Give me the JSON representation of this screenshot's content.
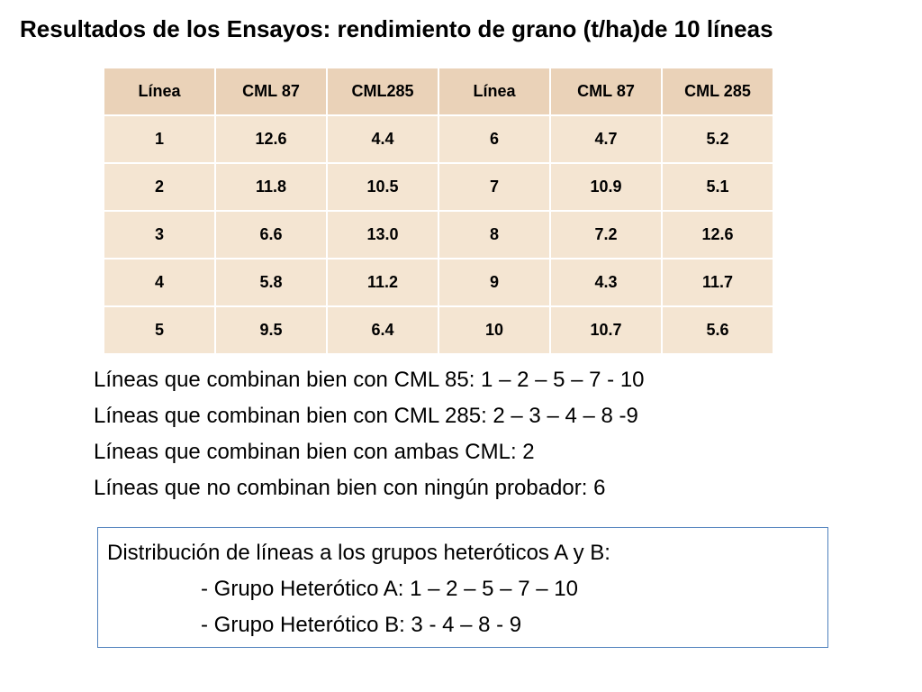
{
  "title": "Resultados de los Ensayos: rendimiento de grano (t/ha)de 10 líneas",
  "table": {
    "headers": [
      "Línea",
      "CML 87",
      "CML285",
      "Línea",
      "CML 87",
      "CML 285"
    ],
    "rows": [
      [
        "1",
        "12.6",
        "4.4",
        "6",
        "4.7",
        "5.2"
      ],
      [
        "2",
        "11.8",
        "10.5",
        "7",
        "10.9",
        "5.1"
      ],
      [
        "3",
        "6.6",
        "13.0",
        "8",
        "7.2",
        "12.6"
      ],
      [
        "4",
        "5.8",
        "11.2",
        "9",
        "4.3",
        "11.7"
      ],
      [
        "5",
        "9.5",
        "6.4",
        "10",
        "10.7",
        "5.6"
      ]
    ]
  },
  "findings": [
    "Líneas que combinan bien con CML 85: 1 – 2 – 5 – 7 -  10",
    "Líneas que combinan bien con CML 285: 2 – 3 – 4 – 8 -9",
    "Líneas que combinan bien con ambas CML: 2",
    "Líneas que no combinan bien con ningún probador: 6"
  ],
  "distribution": {
    "heading": "Distribución de líneas a los grupos heteróticos A y B:",
    "group_a": "- Grupo Heterótico A: 1 – 2 – 5 – 7 – 10",
    "group_b": "- Grupo Heterótico B: 3 - 4 – 8 - 9"
  },
  "colors": {
    "header_fill": "#ead2b8",
    "cell_fill": "#f4e5d2",
    "box_border": "#4f81bd"
  }
}
